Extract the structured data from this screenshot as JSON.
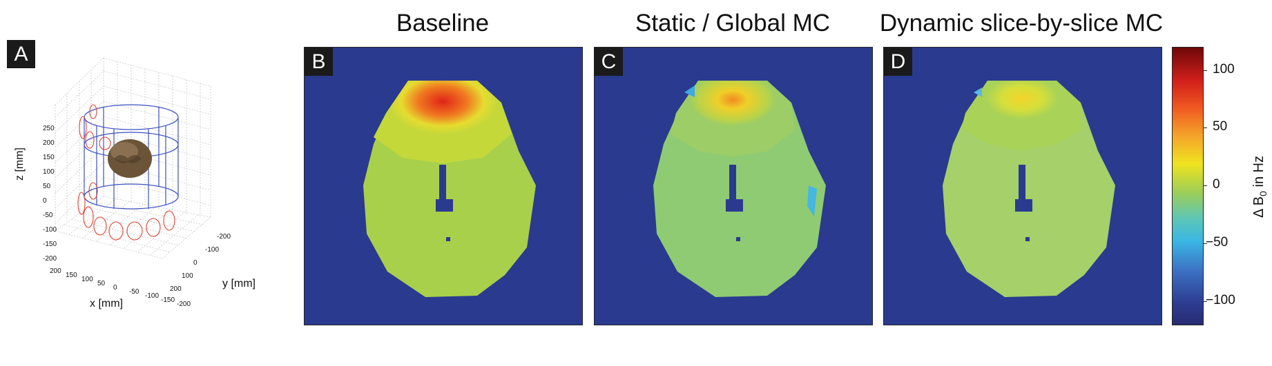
{
  "panelA": {
    "letter": "A",
    "xlabel": "x [mm]",
    "ylabel": "y [mm]",
    "zlabel": "z [mm]",
    "zticks": [
      "250",
      "200",
      "150",
      "100",
      "50",
      "0",
      "-50",
      "-100",
      "-150",
      "-200"
    ],
    "xticks": [
      "200",
      "150",
      "100",
      "50",
      "0",
      "-50",
      "-100",
      "-150",
      "-200"
    ],
    "yticks": [
      "-200",
      "-100",
      "0",
      "100",
      "200"
    ]
  },
  "panels": [
    {
      "letter": "B",
      "title": "Baseline"
    },
    {
      "letter": "C",
      "title": "Static / Global MC"
    },
    {
      "letter": "D",
      "title": "Dynamic slice-by-slice MC"
    }
  ],
  "colorbar": {
    "label": "Δ B0 in Hz",
    "label_main": "Δ B",
    "label_sub": "0",
    "label_unit": "in Hz",
    "ticks": [
      "100",
      "50",
      "0",
      "−50",
      "−100"
    ],
    "colors": {
      "high": "#7a0a0a",
      "mid_red": "#e8261c",
      "orange": "#f59b2a",
      "yellow": "#f2e41e",
      "green": "#8fc64a",
      "cyan": "#3ec0e8",
      "blue": "#2c4fa6",
      "low": "#2a3078"
    }
  }
}
